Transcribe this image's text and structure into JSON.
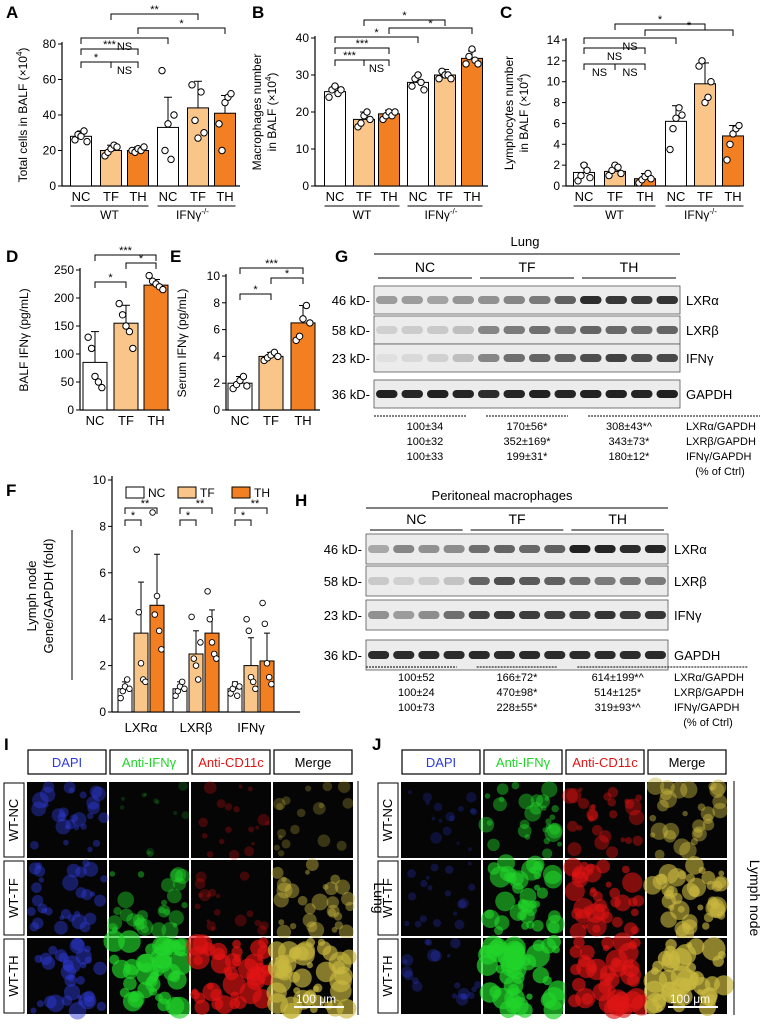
{
  "colors": {
    "nc": "#ffffff",
    "tf": "#f9c588",
    "th": "#f28022",
    "axis": "#000000",
    "blot_bg": "#ececec",
    "dapi": "#2f3bd8",
    "ifng": "#22d42a",
    "cd11c": "#e01414",
    "merge": "#c9b840"
  },
  "panels": {
    "A": {
      "letter": "A",
      "ylabel": "Total cells in BALF (×10",
      "ylabel_sup": "4",
      "ylabel_end": ")",
      "ymin": 0,
      "ymax": 80,
      "ticks": [
        "0",
        "20",
        "40",
        "60",
        "80"
      ],
      "tick_values": [
        0,
        20,
        40,
        60,
        80
      ],
      "bar_labels": [
        "NC",
        "TF",
        "TH",
        "NC",
        "TF",
        "TH"
      ],
      "values": [
        28,
        20,
        20,
        33,
        44,
        41
      ],
      "errors": [
        3,
        3,
        2,
        17,
        15,
        10
      ],
      "points": [
        [
          26,
          29,
          28,
          31,
          25
        ],
        [
          17,
          19,
          21,
          23,
          22
        ],
        [
          20,
          19,
          21,
          20,
          22
        ],
        [
          65,
          20,
          35,
          15,
          40
        ],
        [
          57,
          37,
          27,
          53,
          30
        ],
        [
          35,
          20,
          47,
          50,
          52
        ]
      ],
      "groups": [
        "WT",
        "IFNγ"
      ],
      "group_sup": "-/-",
      "sig": [
        {
          "from": 0,
          "to": 1,
          "label": "*",
          "level": 1
        },
        {
          "from": 1,
          "to": 2,
          "label": "NS",
          "level": 1
        },
        {
          "from": 0,
          "to": 2,
          "label": "***",
          "level": 2
        },
        {
          "from": 0,
          "to": 3,
          "label": "NS",
          "level": 3
        },
        {
          "from": 2,
          "to": 5,
          "label": "*",
          "level": 4
        },
        {
          "from": 1,
          "to": 4,
          "label": "**",
          "level": 5
        }
      ]
    },
    "B": {
      "letter": "B",
      "ylabel": "Macrophages number",
      "ylabel2": "in BALF (×10",
      "ylabel_sup": "4",
      "ylabel_end": ")",
      "ymin": 0,
      "ymax": 40,
      "ticks": [
        "0",
        "10",
        "20",
        "30",
        "40"
      ],
      "tick_values": [
        0,
        10,
        20,
        30,
        40
      ],
      "bar_labels": [
        "NC",
        "TF",
        "TH",
        "NC",
        "TF",
        "TH"
      ],
      "values": [
        25.5,
        18,
        19.5,
        28,
        30,
        34.5
      ],
      "errors": [
        1.5,
        2,
        1,
        2,
        1.5,
        2
      ],
      "points": [
        [
          24,
          26,
          27,
          25,
          26
        ],
        [
          16,
          17,
          19,
          20,
          18
        ],
        [
          18,
          19,
          20,
          19,
          20
        ],
        [
          27,
          29,
          30,
          28,
          26
        ],
        [
          29,
          31,
          30,
          30,
          29
        ],
        [
          33,
          35,
          37,
          34,
          33
        ]
      ],
      "groups": [
        "WT",
        "IFNγ"
      ],
      "group_sup": "-/-",
      "sig": [
        {
          "from": 0,
          "to": 1,
          "label": "***",
          "level": 1
        },
        {
          "from": 1,
          "to": 2,
          "label": "NS",
          "level": 1
        },
        {
          "from": 0,
          "to": 2,
          "label": "***",
          "level": 2
        },
        {
          "from": 0,
          "to": 3,
          "label": "*",
          "level": 3
        },
        {
          "from": 2,
          "to": 5,
          "label": "*",
          "level": 4
        },
        {
          "from": 1,
          "to": 4,
          "label": "*",
          "level": 5
        }
      ]
    },
    "C": {
      "letter": "C",
      "ylabel": "Lymphocytes number",
      "ylabel2": "in BALF (×10",
      "ylabel_sup": "4",
      "ylabel_end": ")",
      "ymin": 0,
      "ymax": 14,
      "ticks": [
        "0",
        "2",
        "4",
        "6",
        "8",
        "10",
        "12",
        "14"
      ],
      "tick_values": [
        0,
        2,
        4,
        6,
        8,
        10,
        12,
        14
      ],
      "bar_labels": [
        "NC",
        "TF",
        "TH",
        "NC",
        "TF",
        "TH"
      ],
      "values": [
        1.3,
        1.4,
        0.7,
        6.2,
        9.8,
        4.8
      ],
      "errors": [
        0.8,
        0.6,
        0.5,
        1.5,
        2,
        1
      ],
      "points": [
        [
          0.5,
          1,
          2,
          1.5,
          0.8
        ],
        [
          1,
          1.5,
          2,
          1.8,
          1.2
        ],
        [
          0.3,
          0.6,
          0.9,
          1.2,
          0.7
        ],
        [
          3.5,
          5.5,
          6.5,
          7.5,
          6.8
        ],
        [
          11.5,
          12,
          8,
          8.5,
          10
        ],
        [
          2.5,
          4,
          5,
          5.5,
          5.8
        ]
      ],
      "groups": [
        "WT",
        "IFNγ"
      ],
      "group_sup": "-/-",
      "sig": [
        {
          "from": 0,
          "to": 1,
          "label": "NS",
          "level": 1
        },
        {
          "from": 1,
          "to": 2,
          "label": "NS",
          "level": 1
        },
        {
          "from": 0,
          "to": 2,
          "label": "NS",
          "level": 2
        },
        {
          "from": 0,
          "to": 3,
          "label": "NS",
          "level": 3
        },
        {
          "from": 2,
          "to": 5,
          "label": "*",
          "level": 4
        },
        {
          "from": 1,
          "to": 4,
          "label": "*",
          "level": 5
        }
      ]
    },
    "D": {
      "letter": "D",
      "ylabel": "BALF IFNγ (pg/mL)",
      "ymin": 0,
      "ymax": 250,
      "ticks": [
        "0",
        "50",
        "100",
        "150",
        "200",
        "250"
      ],
      "tick_values": [
        0,
        50,
        100,
        150,
        200,
        250
      ],
      "bar_labels": [
        "NC",
        "TF",
        "TH"
      ],
      "values": [
        85,
        155,
        223
      ],
      "errors": [
        55,
        32,
        10
      ],
      "points": [
        [
          130,
          110,
          60,
          50,
          40
        ],
        [
          190,
          170,
          150,
          140,
          110
        ],
        [
          240,
          230,
          225,
          220,
          215
        ]
      ],
      "sig": [
        {
          "from": 0,
          "to": 1,
          "label": "*",
          "level": 1
        },
        {
          "from": 1,
          "to": 2,
          "label": "*",
          "level": 2
        },
        {
          "from": 0,
          "to": 2,
          "label": "***",
          "level": 3
        }
      ]
    },
    "E": {
      "letter": "E",
      "ylabel": "Serum IFNγ (pg/mL)",
      "ymin": 0,
      "ymax": 10,
      "ticks": [
        "0",
        "2",
        "4",
        "6",
        "8",
        "10"
      ],
      "tick_values": [
        0,
        2,
        4,
        6,
        8,
        10
      ],
      "bar_labels": [
        "NC",
        "TF",
        "TH"
      ],
      "values": [
        2.0,
        4.0,
        6.5
      ],
      "errors": [
        0.5,
        0.3,
        1.3
      ],
      "points": [
        [
          1.6,
          1.9,
          2.2,
          2.5,
          1.8
        ],
        [
          3.7,
          3.9,
          4.1,
          4.3,
          4.0
        ],
        [
          5.2,
          5.5,
          6.8,
          7.8,
          6.5
        ]
      ],
      "sig": [
        {
          "from": 0,
          "to": 1,
          "label": "*",
          "level": 1
        },
        {
          "from": 1,
          "to": 2,
          "label": "*",
          "level": 2
        },
        {
          "from": 0,
          "to": 2,
          "label": "***",
          "level": 3
        }
      ]
    },
    "F": {
      "letter": "F",
      "ylabel_title": "Lymph node",
      "ylabel": "Gene/GAPDH (fold)",
      "ymin": 0,
      "ymax": 10,
      "ticks": [
        "0",
        "2",
        "4",
        "6",
        "8",
        "10"
      ],
      "tick_values": [
        0,
        2,
        4,
        6,
        8,
        10
      ],
      "legend": [
        "NC",
        "TF",
        "TH"
      ],
      "genes": [
        "LXRα",
        "LXRβ",
        "IFNγ"
      ],
      "values": [
        [
          1.0,
          3.4,
          4.6
        ],
        [
          1.0,
          2.5,
          3.4
        ],
        [
          1.0,
          2.0,
          2.2
        ]
      ],
      "errors": [
        [
          0.3,
          2.2,
          2.2
        ],
        [
          0.3,
          1.0,
          1.0
        ],
        [
          0.3,
          1.2,
          1.2
        ]
      ],
      "points": [
        [
          [
            0.6,
            0.9,
            1.1,
            1.4,
            1.0
          ],
          [
            7.0,
            4.3,
            2.1,
            1.4,
            1.3
          ],
          [
            8.6,
            4.2,
            5.0,
            3.5,
            2.7
          ]
        ],
        [
          [
            0.7,
            0.9,
            1.1,
            1.3,
            1.0
          ],
          [
            4.1,
            2.3,
            2.0,
            1.4,
            3.0
          ],
          [
            5.2,
            4.0,
            3.0,
            2.5,
            2.3
          ]
        ],
        [
          [
            0.8,
            1.0,
            1.2,
            0.7,
            1.1
          ],
          [
            4.0,
            3.5,
            1.5,
            1.3,
            1.0
          ],
          [
            4.7,
            3.8,
            2.1,
            1.5,
            1.2
          ]
        ]
      ],
      "sig_label_low": "*",
      "sig_label_high": "**"
    },
    "G": {
      "letter": "G",
      "title": "Lung",
      "groups": [
        "NC",
        "TF",
        "TH"
      ],
      "rows": [
        {
          "kd": "46 kD-",
          "protein": "LXRα"
        },
        {
          "kd": "58 kD-",
          "protein": "LXRβ"
        },
        {
          "kd": "23 kD-",
          "protein": "IFNγ"
        },
        {
          "kd": "36 kD-",
          "protein": "GAPDH"
        }
      ],
      "bands": [
        [
          0.35,
          0.35,
          0.32,
          0.38,
          0.4,
          0.45,
          0.5,
          0.62,
          0.85,
          0.8,
          0.78,
          0.82
        ],
        [
          0.12,
          0.14,
          0.15,
          0.2,
          0.45,
          0.5,
          0.55,
          0.5,
          0.6,
          0.58,
          0.55,
          0.6
        ],
        [
          0.05,
          0.08,
          0.12,
          0.2,
          0.45,
          0.55,
          0.6,
          0.62,
          0.7,
          0.75,
          0.7,
          0.72
        ],
        [
          0.9,
          0.88,
          0.9,
          0.88,
          0.85,
          0.88,
          0.9,
          0.88,
          0.9,
          0.9,
          0.88,
          0.9
        ]
      ],
      "quant": [
        [
          "100±34",
          "170±56*",
          "308±43*^"
        ],
        [
          "100±32",
          "352±169*",
          "343±73*"
        ],
        [
          "100±33",
          "199±31*",
          "180±12*"
        ]
      ],
      "quant_labels": [
        "LXRα/GAPDH",
        "LXRβ/GAPDH",
        "IFNγ/GAPDH"
      ],
      "quant_note": "(% of Ctrl)"
    },
    "H": {
      "letter": "H",
      "title": "Peritoneal macrophages",
      "groups": [
        "NC",
        "TF",
        "TH"
      ],
      "rows": [
        {
          "kd": "46 kD-",
          "protein": "LXRα"
        },
        {
          "kd": "58 kD-",
          "protein": "LXRβ"
        },
        {
          "kd": "23 kD-",
          "protein": "IFNγ"
        },
        {
          "kd": "36 kD-",
          "protein": "GAPDH"
        }
      ],
      "bands": [
        [
          0.3,
          0.45,
          0.4,
          0.42,
          0.55,
          0.6,
          0.58,
          0.62,
          0.9,
          0.88,
          0.85,
          0.87
        ],
        [
          0.15,
          0.12,
          0.14,
          0.18,
          0.6,
          0.7,
          0.65,
          0.62,
          0.55,
          0.5,
          0.52,
          0.5
        ],
        [
          0.4,
          0.35,
          0.42,
          0.55,
          0.75,
          0.8,
          0.78,
          0.76,
          0.78,
          0.82,
          0.78,
          0.8
        ],
        [
          0.85,
          0.85,
          0.86,
          0.85,
          0.86,
          0.85,
          0.86,
          0.85,
          0.86,
          0.86,
          0.85,
          0.86
        ]
      ],
      "quant": [
        [
          "100±52",
          "166±72*",
          "614±199*^"
        ],
        [
          "100±24",
          "470±98*",
          "514±125*"
        ],
        [
          "100±73",
          "228±55*",
          "319±93*^"
        ]
      ],
      "quant_labels": [
        "LXRα/GAPDH",
        "LXRβ/GAPDH",
        "IFNγ/GAPDH"
      ],
      "quant_note": "(% of Ctrl)"
    },
    "I": {
      "letter": "I",
      "headers": [
        "DAPI",
        "Anti-IFNγ",
        "Anti-CD11c",
        "Merge"
      ],
      "rows": [
        "WT-NC",
        "WT-TF",
        "WT-TH"
      ],
      "side_label": "Lung",
      "scale": "100 μm",
      "intensity": [
        [
          0.2,
          0.05,
          0.2
        ],
        [
          0.35,
          0.5,
          0.2
        ],
        [
          0.35,
          0.85,
          0.85
        ]
      ]
    },
    "J": {
      "letter": "J",
      "headers": [
        "DAPI",
        "Anti-IFNγ",
        "Anti-CD11c",
        "Merge"
      ],
      "rows": [
        "WT-NC",
        "WT-TF",
        "WT-TH"
      ],
      "side_label": "Lymph node",
      "scale": "100 μm",
      "intensity": [
        [
          0.25,
          0.5,
          0.45
        ],
        [
          0.25,
          0.75,
          0.7
        ],
        [
          0.25,
          0.9,
          0.8
        ]
      ]
    }
  }
}
